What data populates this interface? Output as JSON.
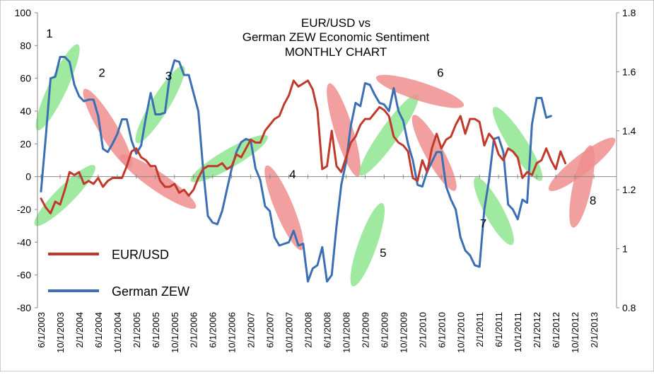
{
  "chart_data": {
    "type": "line",
    "title_lines": [
      "EUR/USD vs",
      "German ZEW Economic Sentiment",
      "MONTHLY CHART"
    ],
    "y_left": {
      "min": -80,
      "max": 100,
      "step": 20,
      "ticks": [
        "100",
        "80",
        "60",
        "40",
        "20",
        "0",
        "-20",
        "-40",
        "-60",
        "-80"
      ]
    },
    "y_right": {
      "min": 0.8,
      "max": 1.8,
      "step": 0.2,
      "ticks": [
        "1.8",
        "1.6",
        "1.4",
        "1.2",
        "1",
        "0.8"
      ]
    },
    "x": {
      "start": "2003-06",
      "end": "2013-06",
      "tick_labels": [
        "6/1/2003",
        "10/1/2003",
        "2/1/2004",
        "6/1/2004",
        "10/1/2004",
        "2/1/2005",
        "6/1/2005",
        "10/1/2005",
        "2/1/2006",
        "6/1/2006",
        "10/1/2006",
        "2/1/2007",
        "6/1/2007",
        "10/1/2007",
        "2/1/2008",
        "6/1/2008",
        "10/1/2008",
        "2/1/2009",
        "6/1/2009",
        "10/1/2009",
        "2/1/2010",
        "6/1/2010",
        "10/1/2010",
        "2/1/2011",
        "6/1/2011",
        "10/1/2011",
        "2/1/2012",
        "6/1/2012",
        "10/1/2012",
        "2/1/2013"
      ]
    },
    "legend": {
      "placement": "bottom-left",
      "items": [
        {
          "label": "EUR/USD",
          "color": "#c0392b"
        },
        {
          "label": "German ZEW",
          "color": "#3a6fb5"
        }
      ]
    },
    "series": [
      {
        "name": "German ZEW",
        "axis": "left",
        "color": "#3a6fb5",
        "values": [
          -9,
          24,
          60,
          61,
          73,
          73,
          70,
          56,
          49,
          46,
          47,
          47,
          37,
          17,
          15,
          20,
          26,
          35,
          35,
          22,
          14,
          19,
          36,
          51,
          38,
          38,
          39,
          61,
          71,
          70,
          62,
          62,
          51,
          40,
          5,
          -24,
          -28,
          -29,
          -21,
          -8,
          5,
          15,
          21,
          23,
          22,
          5,
          -2,
          -18,
          -21,
          -37,
          -42,
          -41,
          -40,
          -33,
          -42,
          -41,
          -64,
          -56,
          -54,
          -43,
          -64,
          -60,
          -30,
          -5,
          9,
          31,
          45,
          43,
          57,
          56,
          50,
          45,
          44,
          40,
          54,
          40,
          34,
          20,
          10,
          -5,
          -6,
          3,
          9,
          15,
          15,
          -6,
          -14,
          -20,
          -37,
          -45,
          -48,
          -54,
          -55,
          -20,
          -2,
          23,
          24,
          15,
          -17,
          -20,
          -26,
          -14,
          -16,
          32,
          48,
          48,
          36,
          37
        ]
      },
      {
        "name": "EUR/USD",
        "axis": "right",
        "color": "#c0392b",
        "values": [
          1.17,
          1.14,
          1.12,
          1.16,
          1.15,
          1.2,
          1.26,
          1.25,
          1.26,
          1.22,
          1.23,
          1.22,
          1.24,
          1.21,
          1.23,
          1.24,
          1.24,
          1.24,
          1.28,
          1.33,
          1.34,
          1.31,
          1.3,
          1.28,
          1.28,
          1.23,
          1.21,
          1.21,
          1.22,
          1.19,
          1.2,
          1.18,
          1.2,
          1.24,
          1.27,
          1.28,
          1.28,
          1.28,
          1.29,
          1.27,
          1.28,
          1.32,
          1.31,
          1.34,
          1.37,
          1.36,
          1.36,
          1.4,
          1.42,
          1.44,
          1.45,
          1.49,
          1.52,
          1.57,
          1.55,
          1.56,
          1.57,
          1.54,
          1.47,
          1.27,
          1.28,
          1.4,
          1.28,
          1.26,
          1.31,
          1.36,
          1.38,
          1.42,
          1.44,
          1.44,
          1.46,
          1.48,
          1.47,
          1.45,
          1.38,
          1.36,
          1.35,
          1.33,
          1.24,
          1.23,
          1.3,
          1.26,
          1.34,
          1.39,
          1.34,
          1.37,
          1.38,
          1.42,
          1.45,
          1.39,
          1.44,
          1.44,
          1.43,
          1.35,
          1.39,
          1.37,
          1.32,
          1.3,
          1.34,
          1.33,
          1.31,
          1.24,
          1.26,
          1.25,
          1.29,
          1.3,
          1.34,
          1.3,
          1.27,
          1.33,
          1.29
        ]
      }
    ],
    "annotations": [
      {
        "label": "1",
        "x": "2003-06",
        "y": 88
      },
      {
        "label": "2",
        "x": "2004-05",
        "y": 64
      },
      {
        "label": "3",
        "x": "2005-07",
        "y": 62
      },
      {
        "label": "4",
        "x": "2007-09",
        "y": 2
      },
      {
        "label": "5",
        "x": "2009-04",
        "y": -46
      },
      {
        "label": "6",
        "x": "2010-04",
        "y": 64
      },
      {
        "label": "7",
        "x": "2011-01",
        "y": -28
      },
      {
        "label": "8",
        "x": "2012-12",
        "y": -14
      }
    ],
    "highlights": [
      {
        "color": "green",
        "x1": "2003-06",
        "y1": 33,
        "x2": "2004-01",
        "y2": 76
      },
      {
        "color": "green",
        "x1": "2003-06",
        "y1": -26,
        "x2": "2004-04",
        "y2": 3
      },
      {
        "color": "red",
        "x1": "2004-04",
        "y1": 49,
        "x2": "2004-12",
        "y2": 10
      },
      {
        "color": "green",
        "x1": "2005-03",
        "y1": 25,
        "x2": "2005-11",
        "y2": 63
      },
      {
        "color": "red",
        "x1": "2004-12",
        "y1": 10,
        "x2": "2006-01",
        "y2": -16
      },
      {
        "color": "green",
        "x1": "2006-03",
        "y1": 0,
        "x2": "2007-04",
        "y2": 22
      },
      {
        "color": "red",
        "x1": "2007-06",
        "y1": 2,
        "x2": "2007-12",
        "y2": -40
      },
      {
        "color": "red",
        "x1": "2008-07",
        "y1": 52,
        "x2": "2008-12",
        "y2": 5
      },
      {
        "color": "green",
        "x1": "2008-12",
        "y1": -62,
        "x2": "2009-05",
        "y2": -21
      },
      {
        "color": "green",
        "x1": "2009-02",
        "y1": 5,
        "x2": "2009-12",
        "y2": 46
      },
      {
        "color": "red",
        "x1": "2009-06",
        "y1": 59,
        "x2": "2010-09",
        "y2": 45
      },
      {
        "color": "red",
        "x1": "2010-01",
        "y1": 33,
        "x2": "2010-08",
        "y2": -4
      },
      {
        "color": "green",
        "x1": "2011-02",
        "y1": -5,
        "x2": "2011-08",
        "y2": -37
      },
      {
        "color": "green",
        "x1": "2011-06",
        "y1": 38,
        "x2": "2012-02",
        "y2": 2
      },
      {
        "color": "red",
        "x1": "2012-06",
        "y1": -5,
        "x2": "2013-05",
        "y2": 20
      },
      {
        "color": "red",
        "x1": "2012-10",
        "y1": -26,
        "x2": "2013-01",
        "y2": 14
      }
    ],
    "grid": false
  }
}
